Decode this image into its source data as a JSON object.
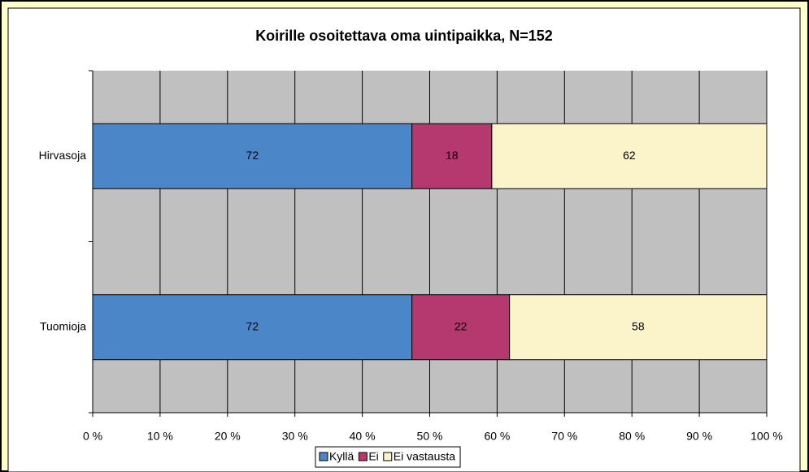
{
  "chart_data": {
    "type": "bar",
    "orientation": "horizontal",
    "stacked": "percent",
    "title": "Koirille osoitettava oma uintipaikka, N=152",
    "categories": [
      "Hirvasoja",
      "Tuomioja"
    ],
    "series": [
      {
        "name": "Kyllä",
        "color": "#4a86c8",
        "values": [
          72,
          72
        ]
      },
      {
        "name": "Ei",
        "color": "#b5396f",
        "values": [
          18,
          22
        ]
      },
      {
        "name": "Ei vastausta",
        "color": "#fbf3c9",
        "values": [
          62,
          58
        ]
      }
    ],
    "xlim": [
      0,
      100
    ],
    "xticks": [
      {
        "value": 0,
        "label": "0 %"
      },
      {
        "value": 10,
        "label": "10 %"
      },
      {
        "value": 20,
        "label": "20 %"
      },
      {
        "value": 30,
        "label": "30 %"
      },
      {
        "value": 40,
        "label": "40 %"
      },
      {
        "value": 50,
        "label": "50 %"
      },
      {
        "value": 60,
        "label": "60 %"
      },
      {
        "value": 70,
        "label": "70 %"
      },
      {
        "value": 80,
        "label": "80 %"
      },
      {
        "value": 90,
        "label": "90 %"
      },
      {
        "value": 100,
        "label": "100 %"
      }
    ],
    "grid": true,
    "legend": "bottom"
  }
}
